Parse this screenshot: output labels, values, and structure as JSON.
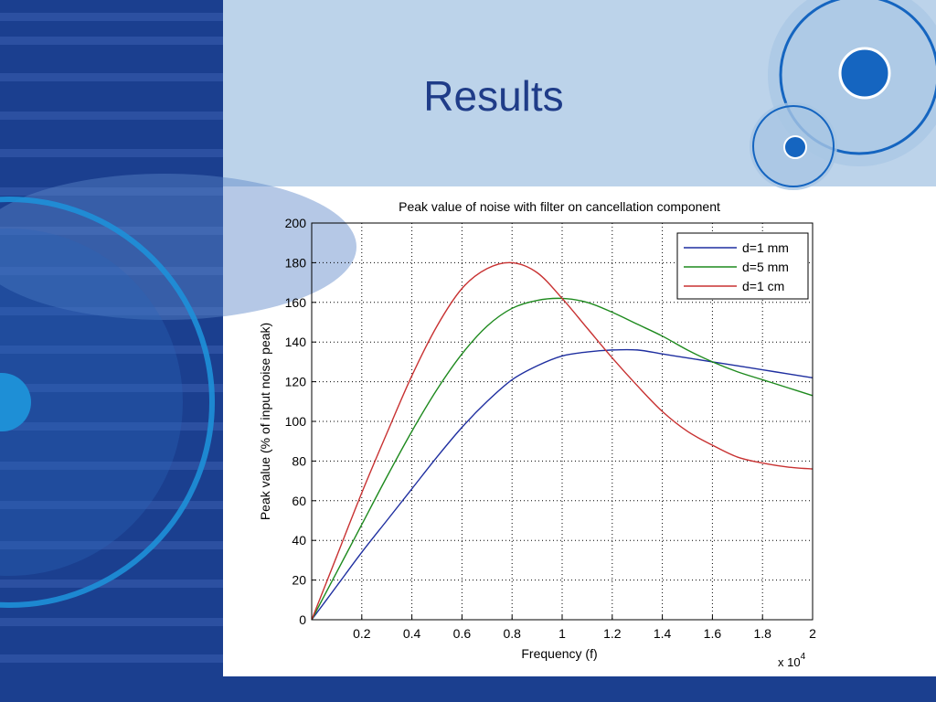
{
  "slide": {
    "title": "Results",
    "colors": {
      "sidebar": "#1b3f8f",
      "header": "#bcd3ea",
      "footer": "#1b3f8f",
      "title": "#1f3c88",
      "circle_accent": "#1565c0"
    }
  },
  "chart_data": {
    "type": "line",
    "title": "Peak value of noise with filter on cancellation component",
    "xlabel": "Frequency (f)",
    "ylabel": "Peak value (% of input noise peak)",
    "x_multiplier_label": "x 10",
    "x_multiplier_exponent": "4",
    "xlim": [
      0,
      2
    ],
    "ylim": [
      0,
      200
    ],
    "xticks": [
      0.2,
      0.4,
      0.6,
      0.8,
      1,
      1.2,
      1.4,
      1.6,
      1.8,
      2
    ],
    "yticks": [
      0,
      20,
      40,
      60,
      80,
      100,
      120,
      140,
      160,
      180,
      200
    ],
    "xtick_labels": [
      "0.2",
      "0.4",
      "0.6",
      "0.8",
      "1",
      "1.2",
      "1.4",
      "1.6",
      "1.8",
      "2"
    ],
    "ytick_labels": [
      "0",
      "20",
      "40",
      "60",
      "80",
      "100",
      "120",
      "140",
      "160",
      "180",
      "200"
    ],
    "grid": true,
    "legend_position": "top-right",
    "series": [
      {
        "name": "d=1 mm",
        "color": "#1f2fa0",
        "x": [
          0,
          0.1,
          0.2,
          0.3,
          0.4,
          0.5,
          0.6,
          0.7,
          0.8,
          0.9,
          1.0,
          1.1,
          1.2,
          1.3,
          1.4,
          1.5,
          1.6,
          1.7,
          1.8,
          1.9,
          2.0
        ],
        "y": [
          0,
          17,
          34,
          50,
          66,
          82,
          97,
          110,
          121,
          128,
          133,
          135,
          136,
          136,
          134,
          132,
          130,
          128,
          126,
          124,
          122
        ]
      },
      {
        "name": "d=5 mm",
        "color": "#1e8a1e",
        "x": [
          0,
          0.1,
          0.2,
          0.3,
          0.4,
          0.5,
          0.6,
          0.7,
          0.8,
          0.9,
          1.0,
          1.1,
          1.2,
          1.3,
          1.4,
          1.5,
          1.6,
          1.7,
          1.8,
          1.9,
          2.0
        ],
        "y": [
          0,
          24,
          48,
          72,
          95,
          116,
          134,
          148,
          157,
          161,
          162,
          160,
          155,
          149,
          143,
          136,
          130,
          125,
          121,
          117,
          113
        ]
      },
      {
        "name": "d=1 cm",
        "color": "#c83232",
        "x": [
          0,
          0.1,
          0.2,
          0.3,
          0.4,
          0.5,
          0.6,
          0.7,
          0.8,
          0.9,
          1.0,
          1.1,
          1.2,
          1.3,
          1.4,
          1.5,
          1.6,
          1.7,
          1.8,
          1.9,
          2.0
        ],
        "y": [
          0,
          32,
          64,
          94,
          123,
          148,
          167,
          177,
          180,
          175,
          162,
          147,
          132,
          118,
          105,
          95,
          88,
          82,
          79,
          77,
          76
        ]
      }
    ]
  }
}
